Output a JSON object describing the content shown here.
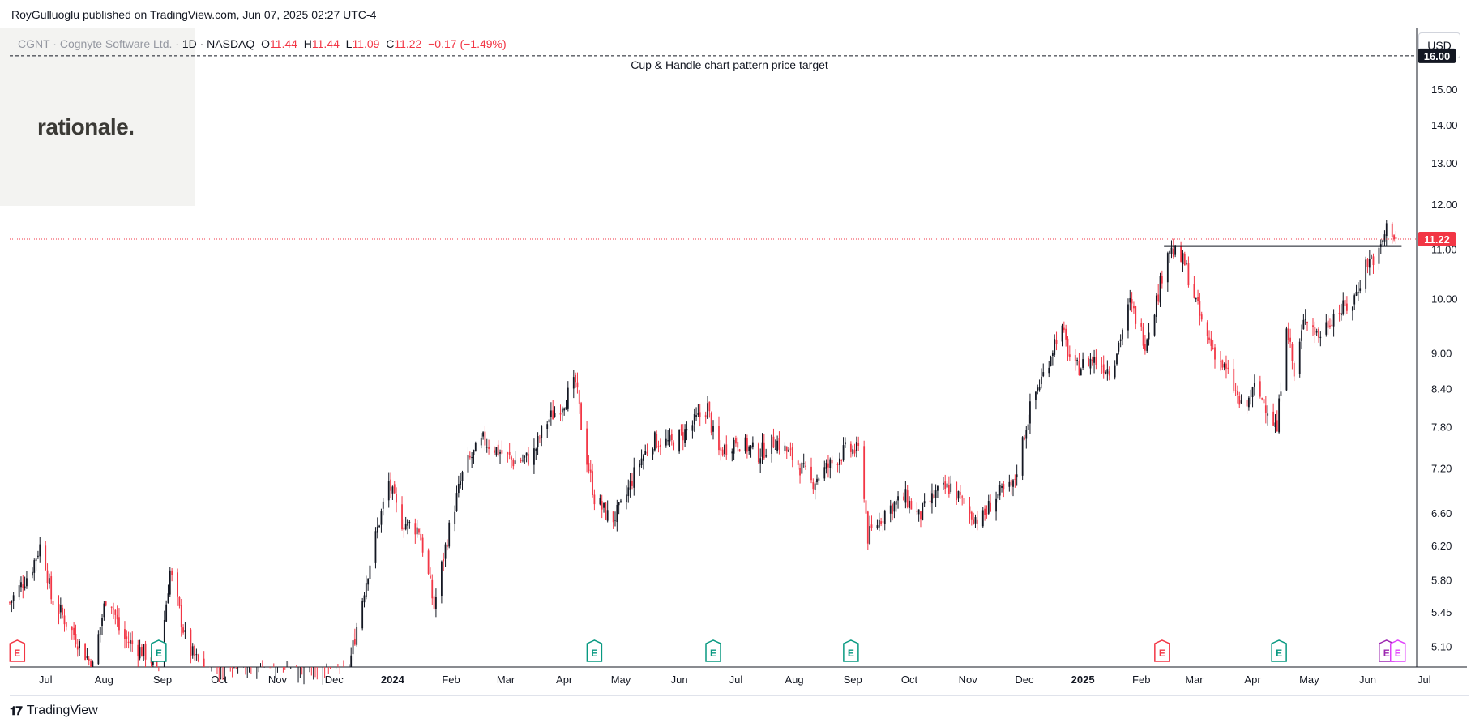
{
  "header": {
    "published": "RoyGulluoglu published on TradingView.com, Jun 07, 2025 02:27 UTC-4"
  },
  "symbol": {
    "name": "CGNT · Cognyte Software Ltd.",
    "interval_exchange": "· 1D · NASDAQ",
    "open_label": "O",
    "open": "11.44",
    "high_label": "H",
    "high": "11.44",
    "low_label": "L",
    "low": "11.09",
    "close_label": "C",
    "close": "11.22",
    "change": "−0.17 (−1.49%)"
  },
  "logo": {
    "text": "rationale."
  },
  "currency": "USD",
  "footer": {
    "brand": "TradingView"
  },
  "colors": {
    "up": "#131722",
    "down": "#f23645",
    "current_price": "#f23645",
    "earnings": "#089981"
  },
  "chart_data": {
    "type": "candlestick",
    "scale": "log",
    "ylim": [
      4.9,
      16.9
    ],
    "y_ticks": [
      5.1,
      5.45,
      5.8,
      6.2,
      6.6,
      7.2,
      7.8,
      8.4,
      9.0,
      10.0,
      11.0,
      12.0,
      13.0,
      14.0,
      15.0
    ],
    "y_tick_labels": [
      "5.10",
      "5.45",
      "5.80",
      "6.20",
      "6.60",
      "7.20",
      "7.80",
      "8.40",
      "9.00",
      "10.00",
      "11.00",
      "12.00",
      "13.00",
      "14.00",
      "15.00"
    ],
    "x_ticks": [
      {
        "label": "Jul",
        "day": 0
      },
      {
        "label": "Aug",
        "day": 31
      },
      {
        "label": "Sep",
        "day": 62
      },
      {
        "label": "Oct",
        "day": 92
      },
      {
        "label": "Nov",
        "day": 123
      },
      {
        "label": "Dec",
        "day": 153
      },
      {
        "label": "2024",
        "day": 184,
        "bold": true
      },
      {
        "label": "Feb",
        "day": 215
      },
      {
        "label": "Mar",
        "day": 244
      },
      {
        "label": "Apr",
        "day": 275
      },
      {
        "label": "May",
        "day": 305
      },
      {
        "label": "Jun",
        "day": 336
      },
      {
        "label": "Jul",
        "day": 366
      },
      {
        "label": "Aug",
        "day": 397
      },
      {
        "label": "Sep",
        "day": 428
      },
      {
        "label": "Oct",
        "day": 458
      },
      {
        "label": "Nov",
        "day": 489
      },
      {
        "label": "Dec",
        "day": 519
      },
      {
        "label": "2025",
        "day": 550,
        "bold": true
      },
      {
        "label": "Feb",
        "day": 581
      },
      {
        "label": "Mar",
        "day": 609
      },
      {
        "label": "Apr",
        "day": 640
      },
      {
        "label": "May",
        "day": 670
      },
      {
        "label": "Jun",
        "day": 701
      },
      {
        "label": "Jul",
        "day": 731
      }
    ],
    "xlim_days": [
      -19,
      727
    ],
    "price_path": [
      [
        -19,
        5.55
      ],
      [
        -8,
        5.9
      ],
      [
        -2,
        6.25
      ],
      [
        3,
        5.6
      ],
      [
        14,
        5.25
      ],
      [
        25,
        4.9
      ],
      [
        33,
        5.7
      ],
      [
        40,
        5.2
      ],
      [
        55,
        5.0
      ],
      [
        60,
        4.85
      ],
      [
        66,
        5.9
      ],
      [
        75,
        5.1
      ],
      [
        90,
        4.7
      ],
      [
        110,
        4.85
      ],
      [
        140,
        4.75
      ],
      [
        160,
        4.8
      ],
      [
        166,
        5.4
      ],
      [
        178,
        6.6
      ],
      [
        182,
        7.0
      ],
      [
        188,
        6.5
      ],
      [
        198,
        6.4
      ],
      [
        206,
        5.5
      ],
      [
        214,
        6.4
      ],
      [
        222,
        7.2
      ],
      [
        232,
        7.6
      ],
      [
        248,
        7.3
      ],
      [
        258,
        7.35
      ],
      [
        265,
        7.85
      ],
      [
        275,
        8.2
      ],
      [
        281,
        8.5
      ],
      [
        285,
        7.6
      ],
      [
        291,
        6.8
      ],
      [
        300,
        6.5
      ],
      [
        306,
        6.7
      ],
      [
        314,
        7.25
      ],
      [
        322,
        7.6
      ],
      [
        332,
        7.55
      ],
      [
        342,
        7.8
      ],
      [
        351,
        8.1
      ],
      [
        356,
        7.4
      ],
      [
        366,
        7.6
      ],
      [
        378,
        7.4
      ],
      [
        387,
        7.6
      ],
      [
        398,
        7.3
      ],
      [
        406,
        7.0
      ],
      [
        414,
        7.2
      ],
      [
        424,
        7.45
      ],
      [
        432,
        7.45
      ],
      [
        436,
        6.3
      ],
      [
        446,
        6.65
      ],
      [
        456,
        6.8
      ],
      [
        463,
        6.55
      ],
      [
        472,
        6.85
      ],
      [
        480,
        6.95
      ],
      [
        490,
        6.6
      ],
      [
        496,
        6.5
      ],
      [
        503,
        6.8
      ],
      [
        513,
        6.95
      ],
      [
        523,
        8.2
      ],
      [
        530,
        8.7
      ],
      [
        538,
        9.5
      ],
      [
        545,
        8.7
      ],
      [
        555,
        8.9
      ],
      [
        565,
        8.7
      ],
      [
        575,
        9.9
      ],
      [
        583,
        9.2
      ],
      [
        590,
        10.1
      ],
      [
        595,
        11.05
      ],
      [
        604,
        10.7
      ],
      [
        614,
        9.4
      ],
      [
        622,
        8.9
      ],
      [
        629,
        8.5
      ],
      [
        635,
        8.0
      ],
      [
        641,
        8.4
      ],
      [
        648,
        8.1
      ],
      [
        653,
        7.75
      ],
      [
        658,
        9.6
      ],
      [
        662,
        8.6
      ],
      [
        668,
        9.7
      ],
      [
        675,
        9.3
      ],
      [
        683,
        9.7
      ],
      [
        693,
        9.9
      ],
      [
        700,
        10.7
      ],
      [
        707,
        10.9
      ],
      [
        712,
        11.6
      ],
      [
        716,
        11.22
      ]
    ],
    "annotations": [
      {
        "type": "hline",
        "style": "dashed",
        "value": 16.0,
        "label": "Cup & Handle chart pattern price target",
        "price_label": "16.00"
      },
      {
        "type": "segment",
        "style": "solid",
        "value": 11.07,
        "from_day": 593,
        "to_day": 719
      },
      {
        "type": "hline",
        "style": "dotted",
        "value": 11.22,
        "price_label": "11.22",
        "current": true
      }
    ],
    "events": [
      {
        "day": -15,
        "type": "E",
        "color": "#f23645"
      },
      {
        "day": 60,
        "type": "E",
        "color": "#089981"
      },
      {
        "day": 291,
        "type": "E",
        "color": "#089981"
      },
      {
        "day": 354,
        "type": "E",
        "color": "#089981"
      },
      {
        "day": 427,
        "type": "E",
        "color": "#089981"
      },
      {
        "day": 592,
        "type": "E",
        "color": "#f23645"
      },
      {
        "day": 654,
        "type": "E",
        "color": "#089981"
      },
      {
        "day": 711,
        "type": "E",
        "color": "#9c27b0"
      },
      {
        "day": 717,
        "type": "E",
        "color": "#e040fb"
      }
    ]
  }
}
